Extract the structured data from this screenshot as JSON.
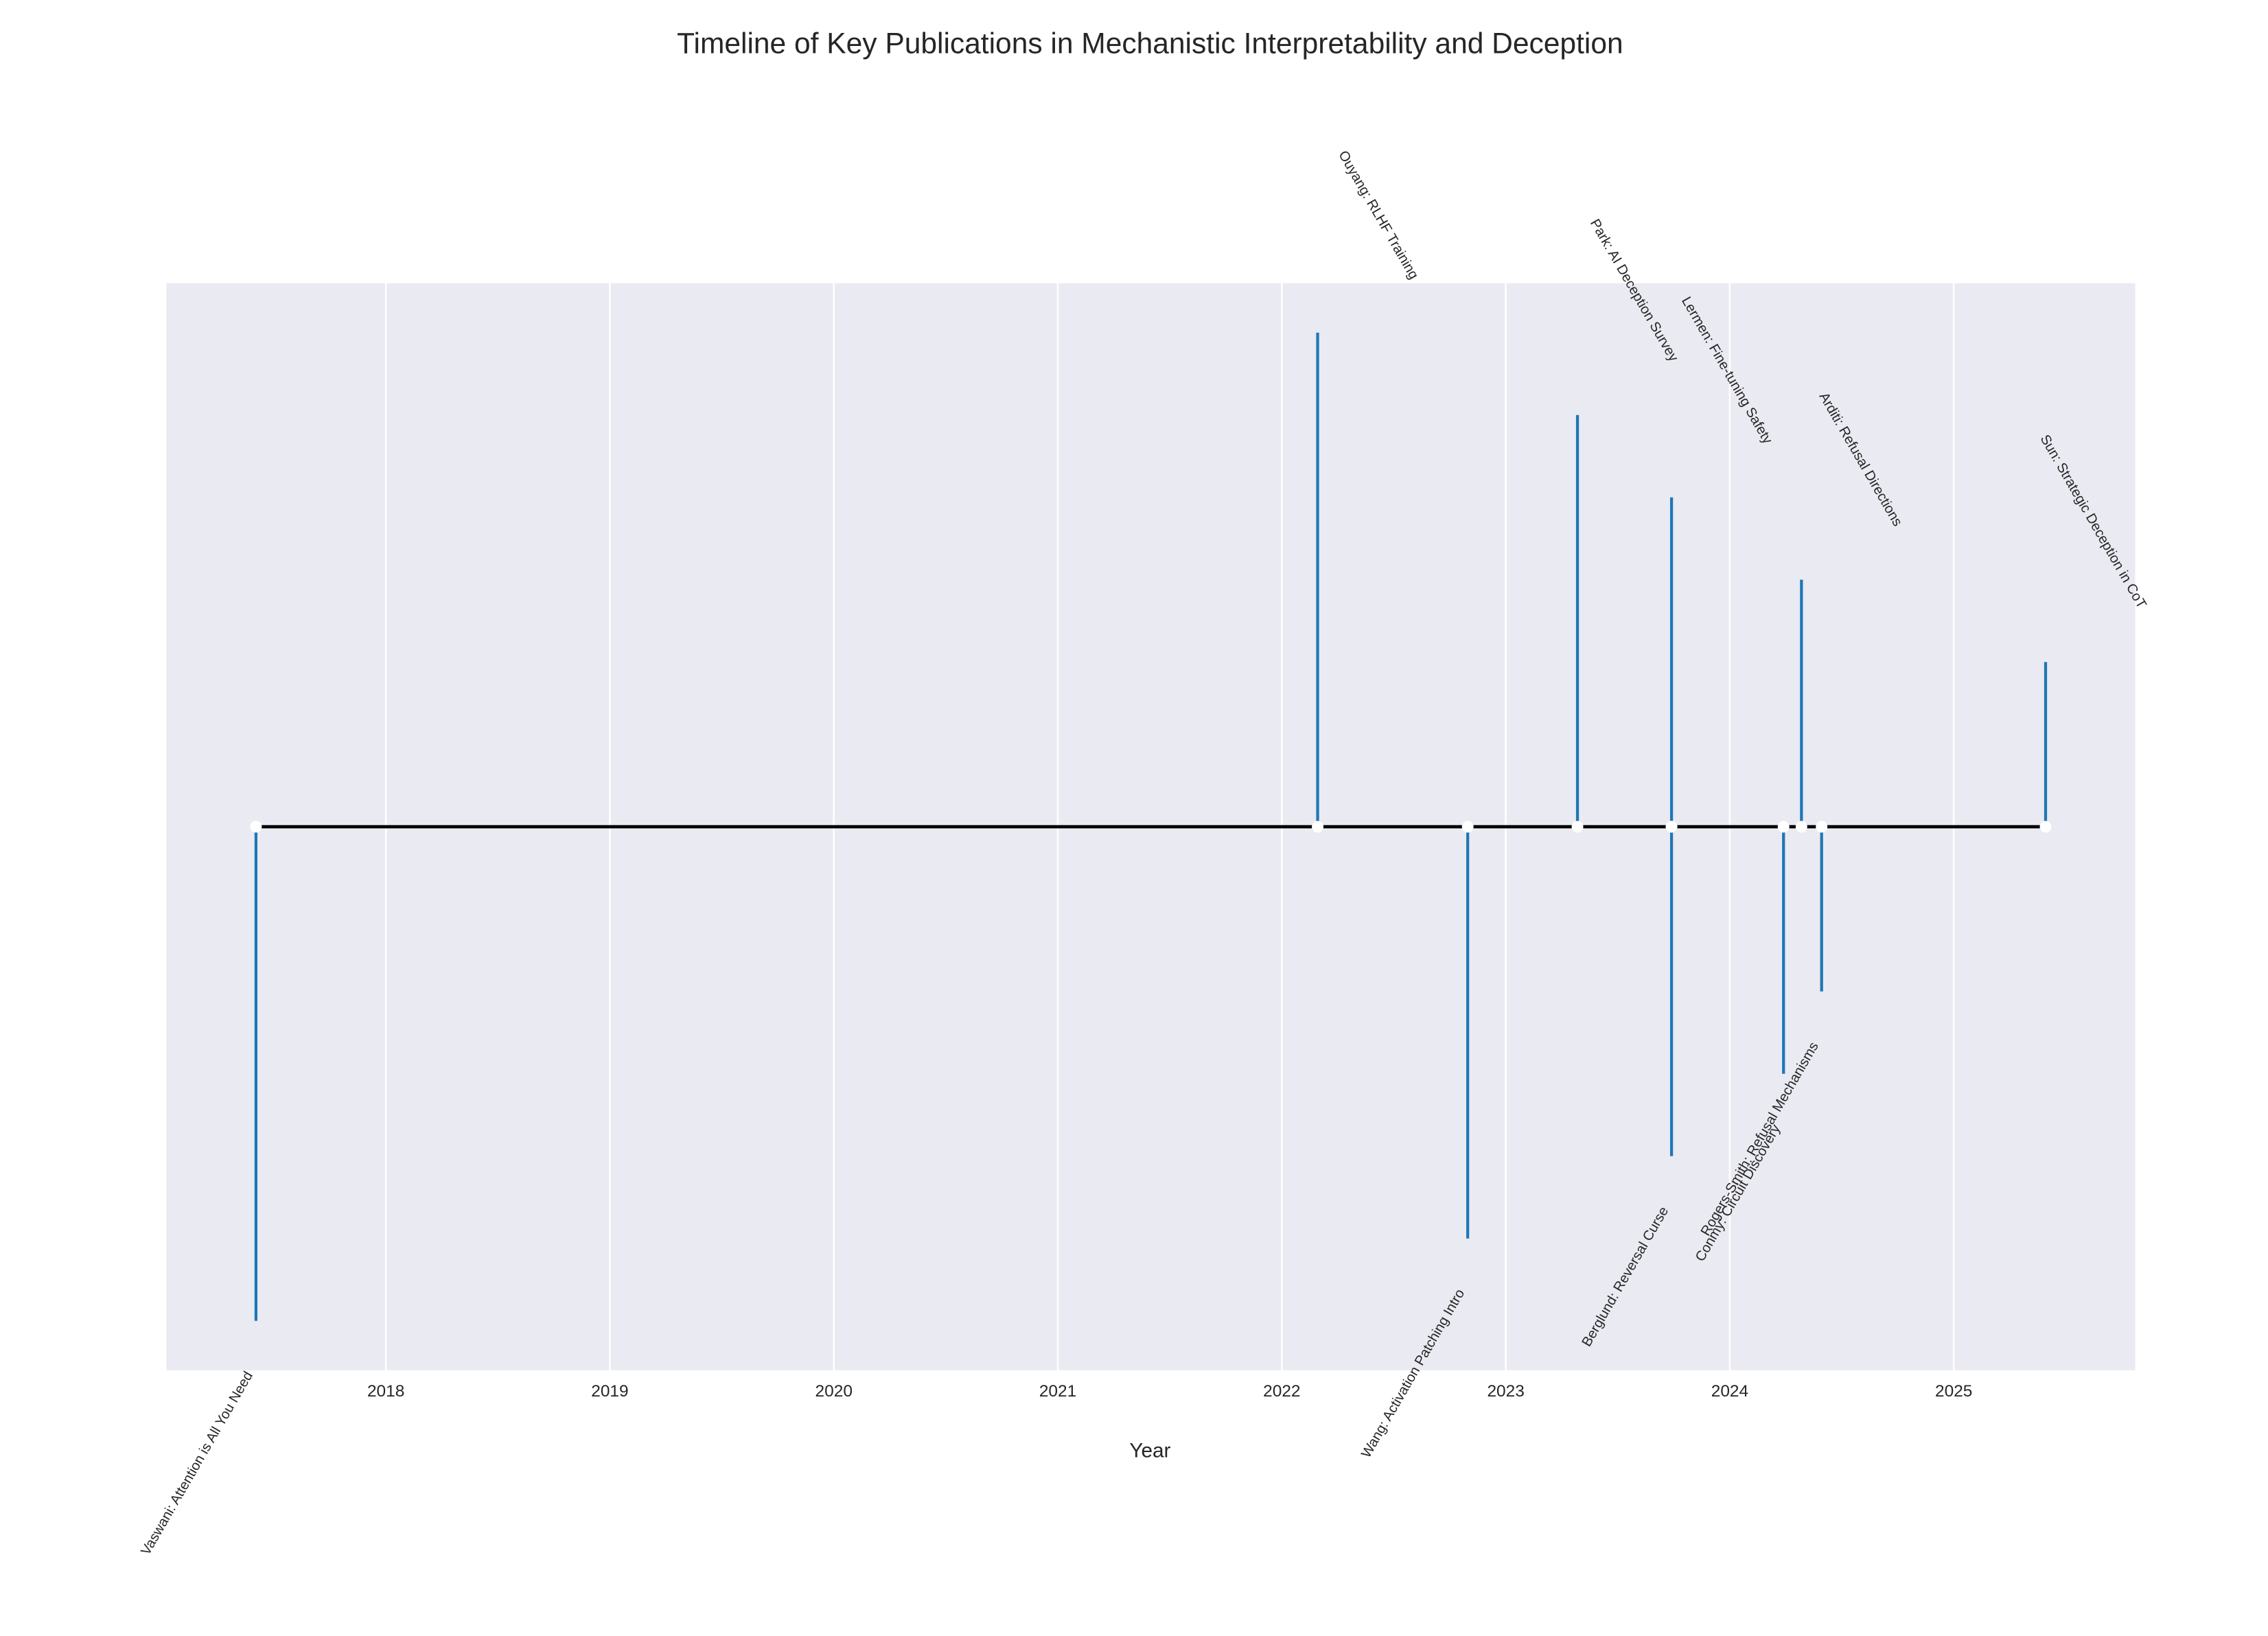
{
  "chart_data": {
    "type": "timeline",
    "title": "Timeline of Key Publications in Mechanistic Interpretability and Deception",
    "xlabel": "Year",
    "x": [
      2017.42,
      2022.16,
      2022.83,
      2023.32,
      2023.74,
      2023.74,
      2024.24,
      2024.32,
      2024.41,
      2025.41
    ],
    "values": [
      -6,
      6,
      -5,
      5,
      -4,
      4,
      -3,
      3,
      -2,
      2
    ],
    "labels": [
      "Vaswani: Attention is All You Need",
      "Ouyang: RLHF Training",
      "Wang: Activation Patching Intro",
      "Park: AI Deception Survey",
      "Berglund: Reversal Curse",
      "Lermen: Fine-tuning Safety",
      "Conmy: Circuit Discovery",
      "Arditi: Refusal Directions",
      "Rogers-Smith: Refusal Mechanisms",
      "Sun: Strategic Deception in CoT"
    ],
    "color": "#1f77b4",
    "baseline_color": "#000000",
    "marker_color": "#ffffff",
    "background": "#eaeaf2",
    "xlim": [
      2017.02,
      2025.81
    ],
    "xticks": [
      2018,
      2019,
      2020,
      2021,
      2022,
      2023,
      2024,
      2025
    ],
    "ylim": [
      -6.6,
      6.6
    ],
    "grid": true
  }
}
